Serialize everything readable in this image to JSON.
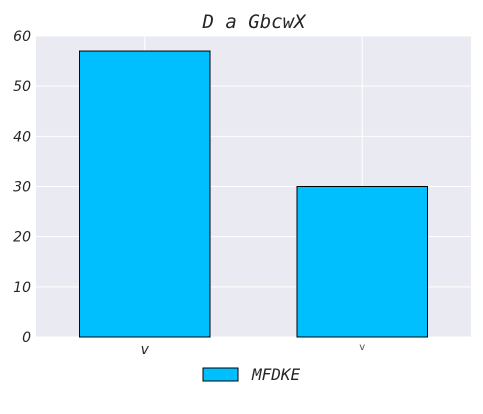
{
  "chart_data": {
    "type": "bar",
    "title": "D a GbcwX",
    "categories": [
      "v",
      "v"
    ],
    "series": [
      {
        "name": "MFDKE",
        "values": [
          57,
          30
        ]
      }
    ],
    "ylim": [
      0,
      60
    ],
    "yticks": [
      "0",
      "10",
      "20",
      "30",
      "40",
      "50",
      "60"
    ],
    "grid": true,
    "legend_position": "bottom-center",
    "colors": {
      "bar": "#00BFFF",
      "plot_background": "#EAEAF2",
      "grid": "#FFFFFF",
      "bar_edge": "#000000"
    }
  }
}
